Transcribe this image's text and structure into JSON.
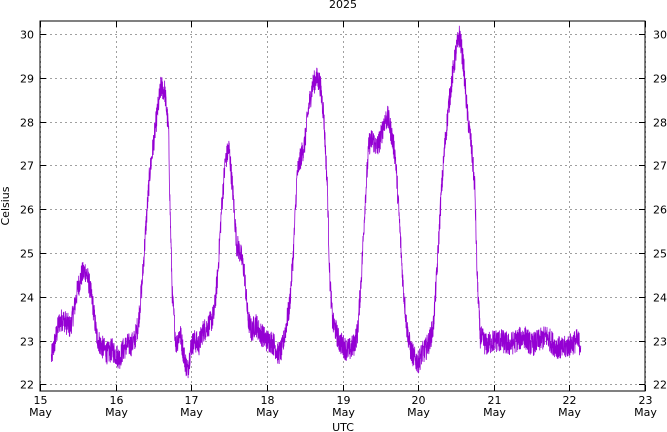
{
  "chart_data": {
    "type": "line",
    "title": "2025",
    "xlabel": "UTC",
    "ylabel": "Celsius",
    "x_ticks": [
      {
        "day": 15,
        "label_top": "15",
        "label_bottom": "May"
      },
      {
        "day": 16,
        "label_top": "16",
        "label_bottom": "May"
      },
      {
        "day": 17,
        "label_top": "17",
        "label_bottom": "May"
      },
      {
        "day": 18,
        "label_top": "18",
        "label_bottom": "May"
      },
      {
        "day": 19,
        "label_top": "19",
        "label_bottom": "May"
      },
      {
        "day": 20,
        "label_top": "20",
        "label_bottom": "May"
      },
      {
        "day": 21,
        "label_top": "21",
        "label_bottom": "May"
      },
      {
        "day": 22,
        "label_top": "22",
        "label_bottom": "May"
      },
      {
        "day": 23,
        "label_top": "23",
        "label_bottom": "May"
      }
    ],
    "y_ticks": [
      "22",
      "23",
      "24",
      "25",
      "26",
      "27",
      "28",
      "29",
      "30"
    ],
    "xlim": [
      15,
      23
    ],
    "ylim": [
      21.85,
      30.3
    ],
    "grid": true,
    "series": [
      {
        "color": "#9400d3",
        "points": [
          [
            15.15,
            22.6
          ],
          [
            15.2,
            23.0
          ],
          [
            15.25,
            23.4
          ],
          [
            15.3,
            23.5
          ],
          [
            15.35,
            23.4
          ],
          [
            15.4,
            23.3
          ],
          [
            15.45,
            23.7
          ],
          [
            15.5,
            24.2
          ],
          [
            15.55,
            24.5
          ],
          [
            15.6,
            24.6
          ],
          [
            15.65,
            24.3
          ],
          [
            15.7,
            23.8
          ],
          [
            15.75,
            23.1
          ],
          [
            15.8,
            22.9
          ],
          [
            15.85,
            22.8
          ],
          [
            15.9,
            22.7
          ],
          [
            15.95,
            22.8
          ],
          [
            16.0,
            22.7
          ],
          [
            16.05,
            22.6
          ],
          [
            16.1,
            22.8
          ],
          [
            16.15,
            22.9
          ],
          [
            16.2,
            22.9
          ],
          [
            16.25,
            23.0
          ],
          [
            16.3,
            23.4
          ],
          [
            16.35,
            24.3
          ],
          [
            16.4,
            25.6
          ],
          [
            16.45,
            26.8
          ],
          [
            16.5,
            27.5
          ],
          [
            16.55,
            28.2
          ],
          [
            16.6,
            28.8
          ],
          [
            16.65,
            28.7
          ],
          [
            16.7,
            27.8
          ],
          [
            16.72,
            26.0
          ],
          [
            16.75,
            24.0
          ],
          [
            16.8,
            22.9
          ],
          [
            16.85,
            23.2
          ],
          [
            16.9,
            22.7
          ],
          [
            16.95,
            22.3
          ],
          [
            17.0,
            22.9
          ],
          [
            17.05,
            23.0
          ],
          [
            17.1,
            22.9
          ],
          [
            17.15,
            23.2
          ],
          [
            17.2,
            23.3
          ],
          [
            17.25,
            23.4
          ],
          [
            17.3,
            23.6
          ],
          [
            17.35,
            24.5
          ],
          [
            17.4,
            26.0
          ],
          [
            17.45,
            27.1
          ],
          [
            17.5,
            27.4
          ],
          [
            17.55,
            26.4
          ],
          [
            17.6,
            25.2
          ],
          [
            17.65,
            25.0
          ],
          [
            17.7,
            24.6
          ],
          [
            17.75,
            23.5
          ],
          [
            17.8,
            23.2
          ],
          [
            17.85,
            23.4
          ],
          [
            17.9,
            23.2
          ],
          [
            17.95,
            23.1
          ],
          [
            18.0,
            23.0
          ],
          [
            18.05,
            23.0
          ],
          [
            18.1,
            22.9
          ],
          [
            18.15,
            22.7
          ],
          [
            18.2,
            22.8
          ],
          [
            18.25,
            23.3
          ],
          [
            18.3,
            23.8
          ],
          [
            18.35,
            25.0
          ],
          [
            18.4,
            26.8
          ],
          [
            18.45,
            27.2
          ],
          [
            18.5,
            27.5
          ],
          [
            18.55,
            28.3
          ],
          [
            18.6,
            28.8
          ],
          [
            18.65,
            29.0
          ],
          [
            18.7,
            28.9
          ],
          [
            18.75,
            28.2
          ],
          [
            18.8,
            26.5
          ],
          [
            18.83,
            24.5
          ],
          [
            18.87,
            23.4
          ],
          [
            18.9,
            23.3
          ],
          [
            18.95,
            23.0
          ],
          [
            19.0,
            22.9
          ],
          [
            19.05,
            22.8
          ],
          [
            19.1,
            22.8
          ],
          [
            19.15,
            22.9
          ],
          [
            19.2,
            23.2
          ],
          [
            19.25,
            24.5
          ],
          [
            19.3,
            26.2
          ],
          [
            19.35,
            27.5
          ],
          [
            19.4,
            27.6
          ],
          [
            19.45,
            27.4
          ],
          [
            19.5,
            27.6
          ],
          [
            19.55,
            28.0
          ],
          [
            19.6,
            28.1
          ],
          [
            19.65,
            27.7
          ],
          [
            19.7,
            27.2
          ],
          [
            19.75,
            25.8
          ],
          [
            19.8,
            24.3
          ],
          [
            19.85,
            23.3
          ],
          [
            19.9,
            22.8
          ],
          [
            19.95,
            22.6
          ],
          [
            20.0,
            22.5
          ],
          [
            20.05,
            22.7
          ],
          [
            20.1,
            22.8
          ],
          [
            20.15,
            23.0
          ],
          [
            20.2,
            23.3
          ],
          [
            20.25,
            24.6
          ],
          [
            20.3,
            26.2
          ],
          [
            20.35,
            27.4
          ],
          [
            20.4,
            28.3
          ],
          [
            20.45,
            29.0
          ],
          [
            20.5,
            29.6
          ],
          [
            20.55,
            30.0
          ],
          [
            20.6,
            29.3
          ],
          [
            20.65,
            28.2
          ],
          [
            20.7,
            27.5
          ],
          [
            20.75,
            26.5
          ],
          [
            20.78,
            24.5
          ],
          [
            20.82,
            23.1
          ],
          [
            20.9,
            22.9
          ],
          [
            21.0,
            23.0
          ],
          [
            21.1,
            23.0
          ],
          [
            21.2,
            22.9
          ],
          [
            21.3,
            23.0
          ],
          [
            21.4,
            23.1
          ],
          [
            21.5,
            22.9
          ],
          [
            21.6,
            23.0
          ],
          [
            21.7,
            23.1
          ],
          [
            21.8,
            22.9
          ],
          [
            21.9,
            22.8
          ],
          [
            22.0,
            22.9
          ],
          [
            22.1,
            23.0
          ],
          [
            22.15,
            22.9
          ]
        ]
      }
    ]
  }
}
